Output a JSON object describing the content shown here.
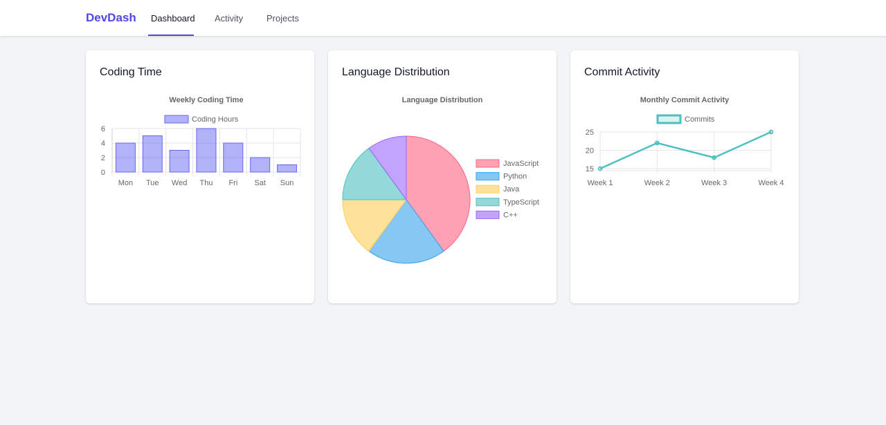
{
  "app": {
    "brand": "DevDash",
    "nav": [
      {
        "label": "Dashboard",
        "active": true
      },
      {
        "label": "Activity",
        "active": false
      },
      {
        "label": "Projects",
        "active": false
      }
    ],
    "accent_color": "#4f46e5"
  },
  "cards": {
    "coding": {
      "title": "Coding Time"
    },
    "language": {
      "title": "Language Distribution"
    },
    "commits": {
      "title": "Commit Activity"
    }
  },
  "chart_data": [
    {
      "type": "bar",
      "title": "Weekly Coding Time",
      "categories": [
        "Mon",
        "Tue",
        "Wed",
        "Thu",
        "Fri",
        "Sat",
        "Sun"
      ],
      "series": [
        {
          "name": "Coding Hours",
          "values": [
            4,
            5,
            3,
            6,
            4,
            2,
            1
          ],
          "color": "#6366f1"
        }
      ],
      "ylim": [
        0,
        6
      ],
      "yticks": [
        0,
        2,
        4,
        6
      ],
      "grid": true,
      "legend": "top"
    },
    {
      "type": "pie",
      "title": "Language Distribution",
      "labels": [
        "JavaScript",
        "Python",
        "Java",
        "TypeScript",
        "C++"
      ],
      "values": [
        40,
        20,
        15,
        15,
        10
      ],
      "colors": [
        "#ff6384",
        "#36a2eb",
        "#ffce56",
        "#4bc0c0",
        "#9966ff"
      ],
      "legend": "right"
    },
    {
      "type": "line",
      "title": "Monthly Commit Activity",
      "categories": [
        "Week 1",
        "Week 2",
        "Week 3",
        "Week 4"
      ],
      "series": [
        {
          "name": "Commits",
          "values": [
            15,
            22,
            18,
            25
          ],
          "color": "#4bc0c0"
        }
      ],
      "ylim": [
        15,
        25
      ],
      "yticks": [
        15,
        20,
        25
      ],
      "grid": true,
      "legend": "top"
    }
  ]
}
